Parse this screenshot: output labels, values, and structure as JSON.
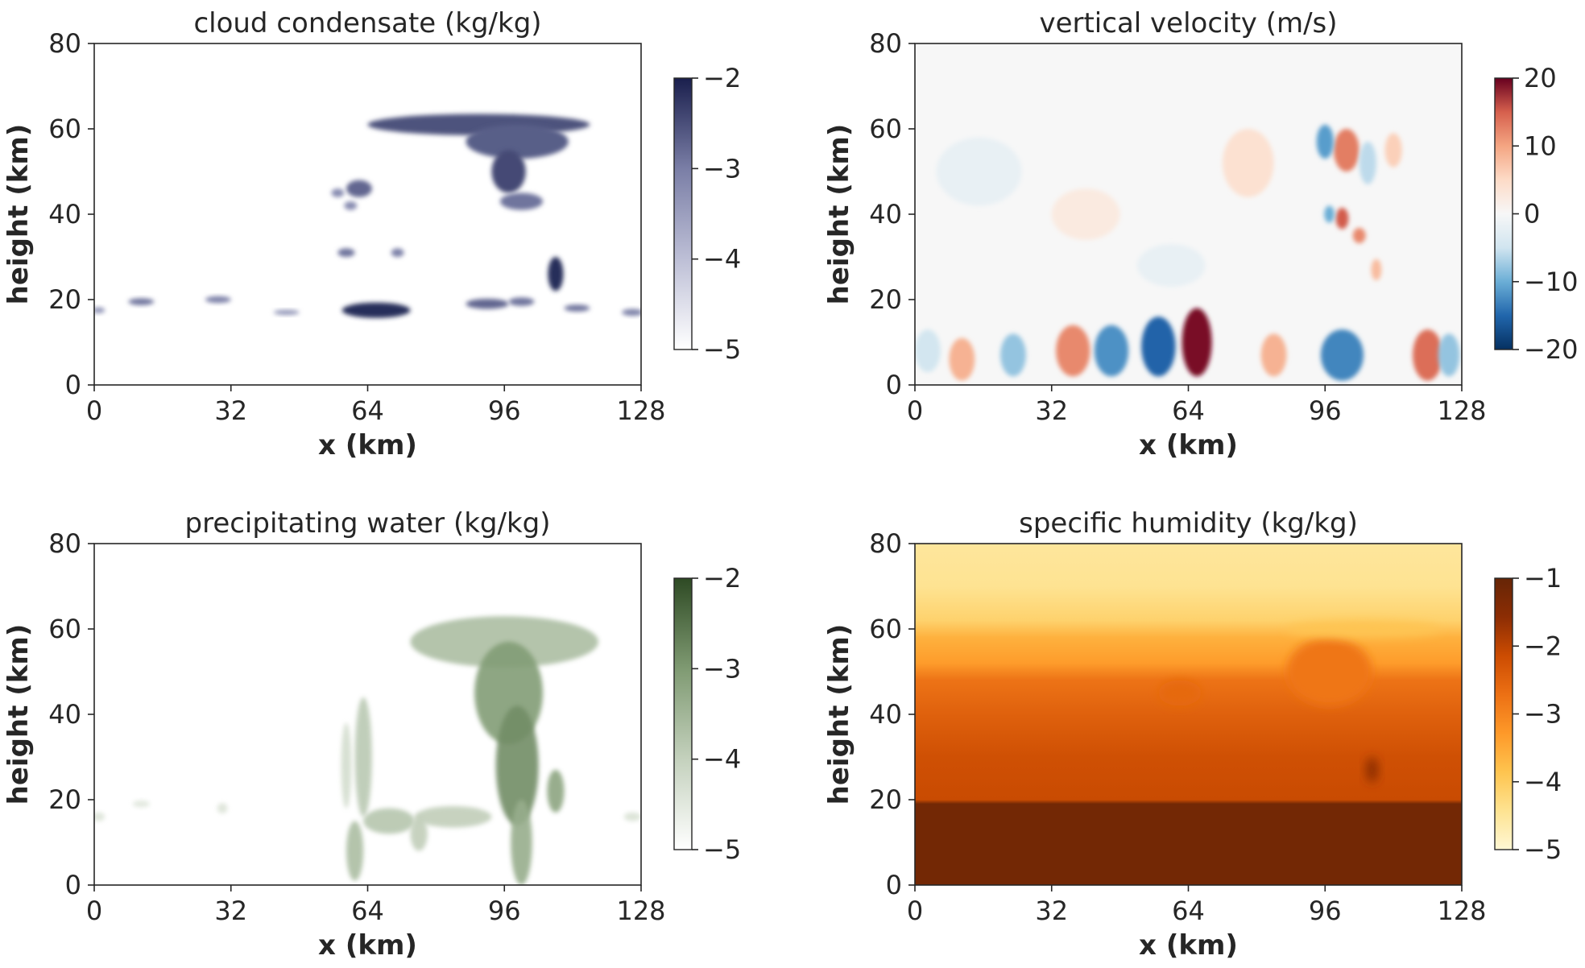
{
  "chart_data": [
    {
      "type": "heatmap",
      "title": "cloud condensate (kg/kg)",
      "xlabel": "x (km)",
      "ylabel": "height (km)",
      "xlim": [
        0,
        128
      ],
      "ylim": [
        0,
        80
      ],
      "xticks": [
        0,
        32,
        64,
        96,
        128
      ],
      "yticks": [
        0,
        20,
        40,
        60,
        80
      ],
      "colorbar": {
        "ticks": [
          -2,
          -3,
          -4,
          -5
        ],
        "range": [
          -5,
          -2
        ],
        "colors": [
          "#ffffff",
          "#bdbfd6",
          "#7a7ea6",
          "#1a1f4d"
        ]
      },
      "features": [
        {
          "kind": "blob",
          "x": 90,
          "y": 61,
          "w": 26,
          "h": 2.5,
          "v": 0.82
        },
        {
          "kind": "blob",
          "x": 99,
          "y": 57,
          "w": 12,
          "h": 4,
          "v": 0.78
        },
        {
          "kind": "blob",
          "x": 97,
          "y": 50,
          "w": 4,
          "h": 5,
          "v": 0.85
        },
        {
          "kind": "blob",
          "x": 100,
          "y": 43,
          "w": 5,
          "h": 2,
          "v": 0.7
        },
        {
          "kind": "blob",
          "x": 108,
          "y": 26,
          "w": 1.8,
          "h": 4,
          "v": 0.95
        },
        {
          "kind": "blob",
          "x": 66,
          "y": 17.5,
          "w": 8,
          "h": 1.8,
          "v": 0.95
        },
        {
          "kind": "blob",
          "x": 62,
          "y": 46,
          "w": 3,
          "h": 2,
          "v": 0.75
        },
        {
          "kind": "blob",
          "x": 57,
          "y": 45,
          "w": 1.5,
          "h": 1,
          "v": 0.6
        },
        {
          "kind": "blob",
          "x": 60,
          "y": 42,
          "w": 1.5,
          "h": 1,
          "v": 0.6
        },
        {
          "kind": "blob",
          "x": 59,
          "y": 31,
          "w": 2,
          "h": 1,
          "v": 0.7
        },
        {
          "kind": "blob",
          "x": 71,
          "y": 31,
          "w": 1.5,
          "h": 1,
          "v": 0.65
        },
        {
          "kind": "blob",
          "x": 92,
          "y": 19,
          "w": 5,
          "h": 1.2,
          "v": 0.75
        },
        {
          "kind": "blob",
          "x": 100,
          "y": 19.5,
          "w": 3,
          "h": 1,
          "v": 0.7
        },
        {
          "kind": "blob",
          "x": 113,
          "y": 18,
          "w": 3,
          "h": 0.8,
          "v": 0.7
        },
        {
          "kind": "blob",
          "x": 11,
          "y": 19.5,
          "w": 3,
          "h": 0.8,
          "v": 0.7
        },
        {
          "kind": "blob",
          "x": 29,
          "y": 20,
          "w": 3,
          "h": 0.8,
          "v": 0.65
        },
        {
          "kind": "blob",
          "x": 45,
          "y": 17,
          "w": 3,
          "h": 0.6,
          "v": 0.55
        },
        {
          "kind": "blob",
          "x": 126,
          "y": 17,
          "w": 2.5,
          "h": 0.8,
          "v": 0.65
        },
        {
          "kind": "blob",
          "x": 1,
          "y": 17.5,
          "w": 1.5,
          "h": 0.7,
          "v": 0.55
        }
      ]
    },
    {
      "type": "heatmap",
      "title": "vertical velocity (m/s)",
      "xlabel": "x (km)",
      "ylabel": "height (km)",
      "xlim": [
        0,
        128
      ],
      "ylim": [
        0,
        80
      ],
      "xticks": [
        0,
        32,
        64,
        96,
        128
      ],
      "yticks": [
        0,
        20,
        40,
        60,
        80
      ],
      "colorbar": {
        "ticks": [
          20,
          10,
          0,
          -10,
          -20
        ],
        "range": [
          -20,
          20
        ],
        "colors": [
          "#053061",
          "#2166ac",
          "#6baed6",
          "#d1e5f0",
          "#f7f7f7",
          "#fddbc7",
          "#f4a582",
          "#d6604d",
          "#67001f"
        ]
      },
      "features": [
        {
          "kind": "blob",
          "x": 66,
          "y": 10,
          "w": 3.5,
          "h": 8,
          "v": 0.98
        },
        {
          "kind": "blob",
          "x": 57,
          "y": 9,
          "w": 4,
          "h": 7,
          "v": 0.12
        },
        {
          "kind": "blob",
          "x": 46,
          "y": 8,
          "w": 4,
          "h": 6,
          "v": 0.2
        },
        {
          "kind": "blob",
          "x": 37,
          "y": 8,
          "w": 4,
          "h": 6,
          "v": 0.8
        },
        {
          "kind": "blob",
          "x": 23,
          "y": 7,
          "w": 3,
          "h": 5,
          "v": 0.3
        },
        {
          "kind": "blob",
          "x": 11,
          "y": 6,
          "w": 3,
          "h": 5,
          "v": 0.72
        },
        {
          "kind": "blob",
          "x": 3,
          "y": 8,
          "w": 3,
          "h": 5,
          "v": 0.38
        },
        {
          "kind": "blob",
          "x": 84,
          "y": 7,
          "w": 3,
          "h": 5,
          "v": 0.72
        },
        {
          "kind": "blob",
          "x": 100,
          "y": 7,
          "w": 5,
          "h": 6,
          "v": 0.18
        },
        {
          "kind": "blob",
          "x": 120,
          "y": 7,
          "w": 3.5,
          "h": 6,
          "v": 0.85
        },
        {
          "kind": "blob",
          "x": 125,
          "y": 7,
          "w": 2.5,
          "h": 5,
          "v": 0.3
        },
        {
          "kind": "blob",
          "x": 101,
          "y": 55,
          "w": 3,
          "h": 5,
          "v": 0.82
        },
        {
          "kind": "blob",
          "x": 96,
          "y": 57,
          "w": 2,
          "h": 4,
          "v": 0.22
        },
        {
          "kind": "blob",
          "x": 106,
          "y": 52,
          "w": 2,
          "h": 5,
          "v": 0.35
        },
        {
          "kind": "blob",
          "x": 100,
          "y": 39,
          "w": 1.5,
          "h": 2.5,
          "v": 0.88
        },
        {
          "kind": "blob",
          "x": 97,
          "y": 40,
          "w": 1.2,
          "h": 2,
          "v": 0.25
        },
        {
          "kind": "blob",
          "x": 104,
          "y": 35,
          "w": 1.5,
          "h": 1.8,
          "v": 0.8
        },
        {
          "kind": "blob",
          "x": 108,
          "y": 27,
          "w": 1.2,
          "h": 2.5,
          "v": 0.7
        },
        {
          "kind": "blob",
          "x": 78,
          "y": 52,
          "w": 6,
          "h": 8,
          "v": 0.6
        },
        {
          "kind": "blob",
          "x": 112,
          "y": 55,
          "w": 2,
          "h": 4,
          "v": 0.65
        },
        {
          "kind": "blob",
          "x": 40,
          "y": 40,
          "w": 8,
          "h": 6,
          "v": 0.56
        },
        {
          "kind": "blob",
          "x": 15,
          "y": 50,
          "w": 10,
          "h": 8,
          "v": 0.45
        },
        {
          "kind": "blob",
          "x": 60,
          "y": 28,
          "w": 8,
          "h": 5,
          "v": 0.45
        }
      ]
    },
    {
      "type": "heatmap",
      "title": "precipitating water (kg/kg)",
      "xlabel": "x (km)",
      "ylabel": "height (km)",
      "xlim": [
        0,
        128
      ],
      "ylim": [
        0,
        80
      ],
      "xticks": [
        0,
        32,
        64,
        96,
        128
      ],
      "yticks": [
        0,
        20,
        40,
        60,
        80
      ],
      "colorbar": {
        "ticks": [
          -2,
          -3,
          -4,
          -5
        ],
        "range": [
          -5,
          -2
        ],
        "colors": [
          "#ffffff",
          "#c4d1bd",
          "#7f9a72",
          "#2e4a24"
        ]
      },
      "features": [
        {
          "kind": "blob",
          "x": 96,
          "y": 57,
          "w": 22,
          "h": 6,
          "v": 0.45
        },
        {
          "kind": "blob",
          "x": 97,
          "y": 45,
          "w": 8,
          "h": 12,
          "v": 0.65
        },
        {
          "kind": "blob",
          "x": 99,
          "y": 28,
          "w": 5,
          "h": 14,
          "v": 0.72
        },
        {
          "kind": "blob",
          "x": 100,
          "y": 10,
          "w": 2.5,
          "h": 10,
          "v": 0.55
        },
        {
          "kind": "blob",
          "x": 108,
          "y": 22,
          "w": 2,
          "h": 5,
          "v": 0.6
        },
        {
          "kind": "blob",
          "x": 84,
          "y": 16,
          "w": 9,
          "h": 2.5,
          "v": 0.35
        },
        {
          "kind": "blob",
          "x": 63,
          "y": 30,
          "w": 2,
          "h": 14,
          "v": 0.38
        },
        {
          "kind": "blob",
          "x": 59,
          "y": 28,
          "w": 1.2,
          "h": 10,
          "v": 0.25
        },
        {
          "kind": "blob",
          "x": 61,
          "y": 8,
          "w": 2,
          "h": 7,
          "v": 0.45
        },
        {
          "kind": "blob",
          "x": 69,
          "y": 15,
          "w": 6,
          "h": 3,
          "v": 0.4
        },
        {
          "kind": "blob",
          "x": 76,
          "y": 12,
          "w": 2,
          "h": 4,
          "v": 0.35
        },
        {
          "kind": "blob",
          "x": 11,
          "y": 19,
          "w": 2,
          "h": 0.8,
          "v": 0.18
        },
        {
          "kind": "blob",
          "x": 30,
          "y": 18,
          "w": 1.2,
          "h": 1.2,
          "v": 0.2
        },
        {
          "kind": "blob",
          "x": 126,
          "y": 16,
          "w": 2,
          "h": 1,
          "v": 0.22
        },
        {
          "kind": "blob",
          "x": 1,
          "y": 16,
          "w": 1.5,
          "h": 1,
          "v": 0.2
        }
      ]
    },
    {
      "type": "heatmap",
      "title": "specific humidity (kg/kg)",
      "xlabel": "x (km)",
      "ylabel": "height (km)",
      "xlim": [
        0,
        128
      ],
      "ylim": [
        0,
        80
      ],
      "xticks": [
        0,
        32,
        64,
        96,
        128
      ],
      "yticks": [
        0,
        20,
        40,
        60,
        80
      ],
      "colorbar": {
        "ticks": [
          -1,
          -2,
          -3,
          -4,
          -5
        ],
        "range": [
          -5,
          -1
        ],
        "colors": [
          "#fff7d4",
          "#fee391",
          "#fec44f",
          "#fe9929",
          "#ec7014",
          "#cc4c02",
          "#8c2d04",
          "#662506"
        ]
      },
      "profile": [
        {
          "y": 0,
          "v": 0.95
        },
        {
          "y": 19,
          "v": 0.95
        },
        {
          "y": 20,
          "v": 0.72
        },
        {
          "y": 30,
          "v": 0.7
        },
        {
          "y": 40,
          "v": 0.63
        },
        {
          "y": 48,
          "v": 0.56
        },
        {
          "y": 52,
          "v": 0.42
        },
        {
          "y": 58,
          "v": 0.35
        },
        {
          "y": 62,
          "v": 0.22
        },
        {
          "y": 70,
          "v": 0.14
        },
        {
          "y": 80,
          "v": 0.12
        }
      ],
      "features": [
        {
          "kind": "blob",
          "x": 97,
          "y": 50,
          "w": 10,
          "h": 8,
          "v": 0.55
        },
        {
          "kind": "blob",
          "x": 105,
          "y": 60,
          "w": 18,
          "h": 2,
          "v": 0.28
        },
        {
          "kind": "blob",
          "x": 62,
          "y": 45,
          "w": 5,
          "h": 3,
          "v": 0.6
        },
        {
          "kind": "blob",
          "x": 107,
          "y": 27,
          "w": 1.5,
          "h": 3,
          "v": 0.85
        }
      ]
    }
  ]
}
